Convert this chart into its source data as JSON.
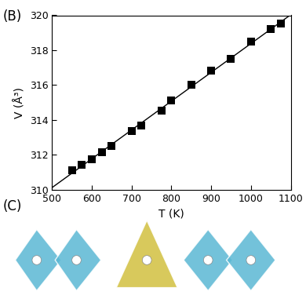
{
  "title_label": "(B)",
  "xlabel": "T (K)",
  "ylabel": "V (Å³)",
  "xlim": [
    500,
    1100
  ],
  "ylim": [
    310,
    320
  ],
  "xticks": [
    500,
    600,
    700,
    800,
    900,
    1000,
    1100
  ],
  "yticks": [
    310,
    312,
    314,
    316,
    318,
    320
  ],
  "data_T": [
    550,
    575,
    600,
    625,
    650,
    700,
    725,
    775,
    800,
    850,
    900,
    950,
    1000,
    1050,
    1075
  ],
  "data_V": [
    311.1,
    311.45,
    311.75,
    312.15,
    312.5,
    313.35,
    313.7,
    314.55,
    315.1,
    316.0,
    316.85,
    317.5,
    318.5,
    319.2,
    319.55
  ],
  "marker_color": "black",
  "line_color": "black",
  "marker_size": 7,
  "line_width": 1.0,
  "background_color": "#ffffff",
  "bottom_bg": "#d0e8f0",
  "fig_width": 3.9,
  "fig_height": 3.9
}
